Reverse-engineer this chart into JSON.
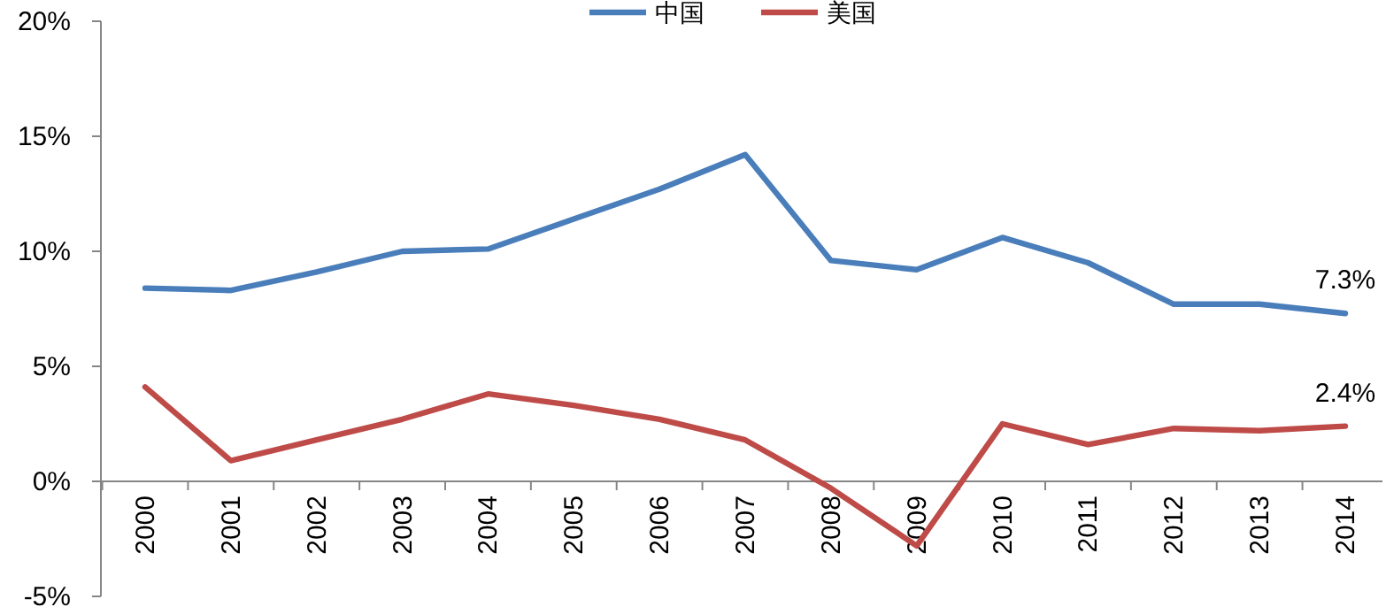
{
  "chart_data": {
    "type": "line",
    "categories": [
      "2000",
      "2001",
      "2002",
      "2003",
      "2004",
      "2005",
      "2006",
      "2007",
      "2008",
      "2009",
      "2010",
      "2011",
      "2012",
      "2013",
      "2014"
    ],
    "series": [
      {
        "name": "中国",
        "color": "#4a7ebb",
        "values": [
          8.4,
          8.3,
          9.1,
          10.0,
          10.1,
          11.4,
          12.7,
          14.2,
          9.6,
          9.2,
          10.6,
          9.5,
          7.7,
          7.7,
          7.3
        ],
        "value_labels": [
          null,
          null,
          null,
          null,
          null,
          null,
          null,
          null,
          null,
          null,
          null,
          null,
          null,
          null,
          "7.3%"
        ]
      },
      {
        "name": "美国",
        "color": "#be4b48",
        "values": [
          4.1,
          0.9,
          1.8,
          2.7,
          3.8,
          3.3,
          2.7,
          1.8,
          -0.3,
          -2.8,
          2.5,
          1.6,
          2.3,
          2.2,
          2.4
        ],
        "value_labels": [
          null,
          null,
          null,
          null,
          null,
          null,
          null,
          null,
          null,
          null,
          null,
          null,
          null,
          null,
          "2.4%"
        ]
      }
    ],
    "ylim": [
      -5,
      20
    ],
    "yticks": [
      {
        "value": -5,
        "label": "-5%"
      },
      {
        "value": 0,
        "label": "0%"
      },
      {
        "value": 5,
        "label": "5%"
      },
      {
        "value": 10,
        "label": "10%"
      },
      {
        "value": 15,
        "label": "15%"
      },
      {
        "value": 20,
        "label": "20%"
      }
    ],
    "legend": "top"
  }
}
